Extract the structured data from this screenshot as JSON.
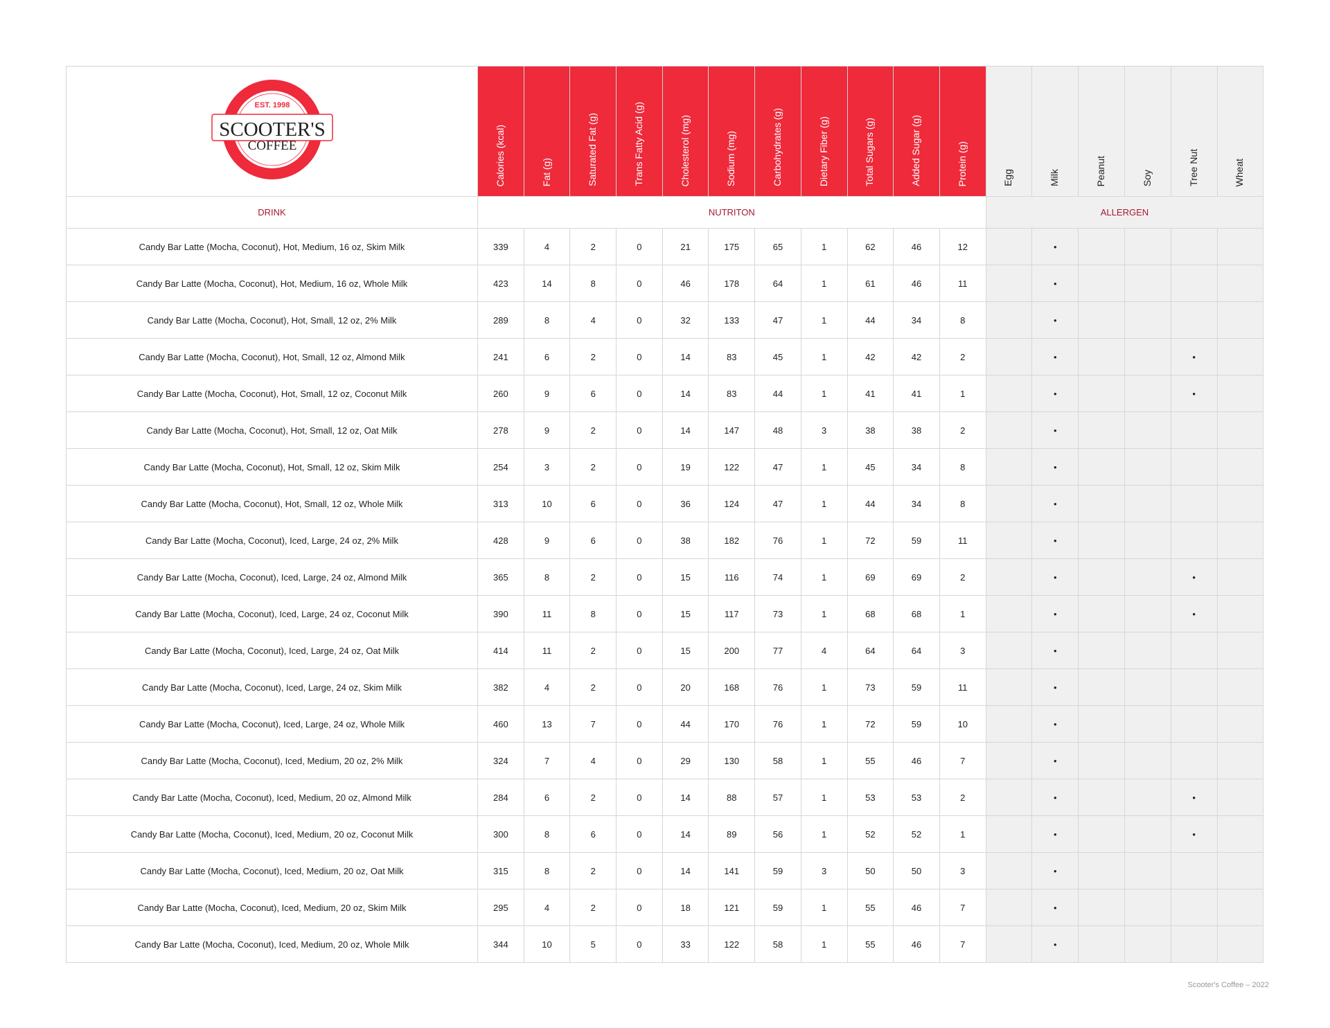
{
  "logo": {
    "est": "EST. 1998",
    "name": "SCOOTER'S",
    "sub": "COFFEE"
  },
  "sections": {
    "drink": "DRINK",
    "nutrition": "NUTRITON",
    "allergen": "ALLERGEN"
  },
  "nutrition_columns": [
    "Calories (kcal)",
    "Fat (g)",
    "Saturated Fat (g)",
    "Trans Fatty Acid (g)",
    "Cholesterol (mg)",
    "Sodium (mg)",
    "Carbohydrates (g)",
    "Dietary Fiber (g)",
    "Total Sugars (g)",
    "Added Sugar (g)",
    "Protein (g)"
  ],
  "allergen_columns": [
    "Egg",
    "Milk",
    "Peanut",
    "Soy",
    "Tree Nut",
    "Wheat"
  ],
  "allergen_marker": "•",
  "rows": [
    {
      "drink": "Candy Bar Latte (Mocha, Coconut), Hot, Medium, 16 oz, Skim Milk",
      "values": [
        339,
        4,
        2,
        0,
        21,
        175,
        65,
        1,
        62,
        46,
        12
      ],
      "allergens": [
        false,
        true,
        false,
        false,
        false,
        false
      ]
    },
    {
      "drink": "Candy Bar Latte (Mocha, Coconut), Hot, Medium, 16 oz, Whole Milk",
      "values": [
        423,
        14,
        8,
        0,
        46,
        178,
        64,
        1,
        61,
        46,
        11
      ],
      "allergens": [
        false,
        true,
        false,
        false,
        false,
        false
      ]
    },
    {
      "drink": "Candy Bar Latte (Mocha, Coconut), Hot, Small, 12 oz, 2% Milk",
      "values": [
        289,
        8,
        4,
        0,
        32,
        133,
        47,
        1,
        44,
        34,
        8
      ],
      "allergens": [
        false,
        true,
        false,
        false,
        false,
        false
      ]
    },
    {
      "drink": "Candy Bar Latte (Mocha, Coconut), Hot, Small, 12 oz, Almond Milk",
      "values": [
        241,
        6,
        2,
        0,
        14,
        83,
        45,
        1,
        42,
        42,
        2
      ],
      "allergens": [
        false,
        true,
        false,
        false,
        true,
        false
      ]
    },
    {
      "drink": "Candy Bar Latte (Mocha, Coconut), Hot, Small, 12 oz, Coconut Milk",
      "values": [
        260,
        9,
        6,
        0,
        14,
        83,
        44,
        1,
        41,
        41,
        1
      ],
      "allergens": [
        false,
        true,
        false,
        false,
        true,
        false
      ]
    },
    {
      "drink": "Candy Bar Latte (Mocha, Coconut), Hot, Small, 12 oz, Oat Milk",
      "values": [
        278,
        9,
        2,
        0,
        14,
        147,
        48,
        3,
        38,
        38,
        2
      ],
      "allergens": [
        false,
        true,
        false,
        false,
        false,
        false
      ]
    },
    {
      "drink": "Candy Bar Latte (Mocha, Coconut), Hot, Small, 12 oz, Skim Milk",
      "values": [
        254,
        3,
        2,
        0,
        19,
        122,
        47,
        1,
        45,
        34,
        8
      ],
      "allergens": [
        false,
        true,
        false,
        false,
        false,
        false
      ]
    },
    {
      "drink": "Candy Bar Latte (Mocha, Coconut), Hot, Small, 12 oz, Whole Milk",
      "values": [
        313,
        10,
        6,
        0,
        36,
        124,
        47,
        1,
        44,
        34,
        8
      ],
      "allergens": [
        false,
        true,
        false,
        false,
        false,
        false
      ]
    },
    {
      "drink": "Candy Bar Latte (Mocha, Coconut), Iced, Large, 24 oz, 2% Milk",
      "values": [
        428,
        9,
        6,
        0,
        38,
        182,
        76,
        1,
        72,
        59,
        11
      ],
      "allergens": [
        false,
        true,
        false,
        false,
        false,
        false
      ]
    },
    {
      "drink": "Candy Bar Latte (Mocha, Coconut), Iced, Large, 24 oz, Almond Milk",
      "values": [
        365,
        8,
        2,
        0,
        15,
        116,
        74,
        1,
        69,
        69,
        2
      ],
      "allergens": [
        false,
        true,
        false,
        false,
        true,
        false
      ]
    },
    {
      "drink": "Candy Bar Latte (Mocha, Coconut), Iced, Large, 24 oz, Coconut Milk",
      "values": [
        390,
        11,
        8,
        0,
        15,
        117,
        73,
        1,
        68,
        68,
        1
      ],
      "allergens": [
        false,
        true,
        false,
        false,
        true,
        false
      ]
    },
    {
      "drink": "Candy Bar Latte (Mocha, Coconut), Iced, Large, 24 oz, Oat Milk",
      "values": [
        414,
        11,
        2,
        0,
        15,
        200,
        77,
        4,
        64,
        64,
        3
      ],
      "allergens": [
        false,
        true,
        false,
        false,
        false,
        false
      ]
    },
    {
      "drink": "Candy Bar Latte (Mocha, Coconut), Iced, Large, 24 oz, Skim Milk",
      "values": [
        382,
        4,
        2,
        0,
        20,
        168,
        76,
        1,
        73,
        59,
        11
      ],
      "allergens": [
        false,
        true,
        false,
        false,
        false,
        false
      ]
    },
    {
      "drink": "Candy Bar Latte (Mocha, Coconut), Iced, Large, 24 oz, Whole Milk",
      "values": [
        460,
        13,
        7,
        0,
        44,
        170,
        76,
        1,
        72,
        59,
        10
      ],
      "allergens": [
        false,
        true,
        false,
        false,
        false,
        false
      ]
    },
    {
      "drink": "Candy Bar Latte (Mocha, Coconut), Iced, Medium, 20 oz, 2% Milk",
      "values": [
        324,
        7,
        4,
        0,
        29,
        130,
        58,
        1,
        55,
        46,
        7
      ],
      "allergens": [
        false,
        true,
        false,
        false,
        false,
        false
      ]
    },
    {
      "drink": "Candy Bar Latte (Mocha, Coconut), Iced, Medium, 20 oz, Almond Milk",
      "values": [
        284,
        6,
        2,
        0,
        14,
        88,
        57,
        1,
        53,
        53,
        2
      ],
      "allergens": [
        false,
        true,
        false,
        false,
        true,
        false
      ]
    },
    {
      "drink": "Candy Bar Latte (Mocha, Coconut), Iced, Medium, 20 oz, Coconut Milk",
      "values": [
        300,
        8,
        6,
        0,
        14,
        89,
        56,
        1,
        52,
        52,
        1
      ],
      "allergens": [
        false,
        true,
        false,
        false,
        true,
        false
      ]
    },
    {
      "drink": "Candy Bar Latte (Mocha, Coconut), Iced, Medium, 20 oz, Oat Milk",
      "values": [
        315,
        8,
        2,
        0,
        14,
        141,
        59,
        3,
        50,
        50,
        3
      ],
      "allergens": [
        false,
        true,
        false,
        false,
        false,
        false
      ]
    },
    {
      "drink": "Candy Bar Latte (Mocha, Coconut), Iced, Medium, 20 oz, Skim Milk",
      "values": [
        295,
        4,
        2,
        0,
        18,
        121,
        59,
        1,
        55,
        46,
        7
      ],
      "allergens": [
        false,
        true,
        false,
        false,
        false,
        false
      ]
    },
    {
      "drink": "Candy Bar Latte (Mocha, Coconut), Iced, Medium, 20 oz, Whole Milk",
      "values": [
        344,
        10,
        5,
        0,
        33,
        122,
        58,
        1,
        55,
        46,
        7
      ],
      "allergens": [
        false,
        true,
        false,
        false,
        false,
        false
      ]
    }
  ],
  "footer": "Scooter's Coffee – 2022",
  "colors": {
    "brand_red": "#ee2a3b",
    "section_title": "#a8182e",
    "allergen_bg": "#f0f0f0"
  }
}
